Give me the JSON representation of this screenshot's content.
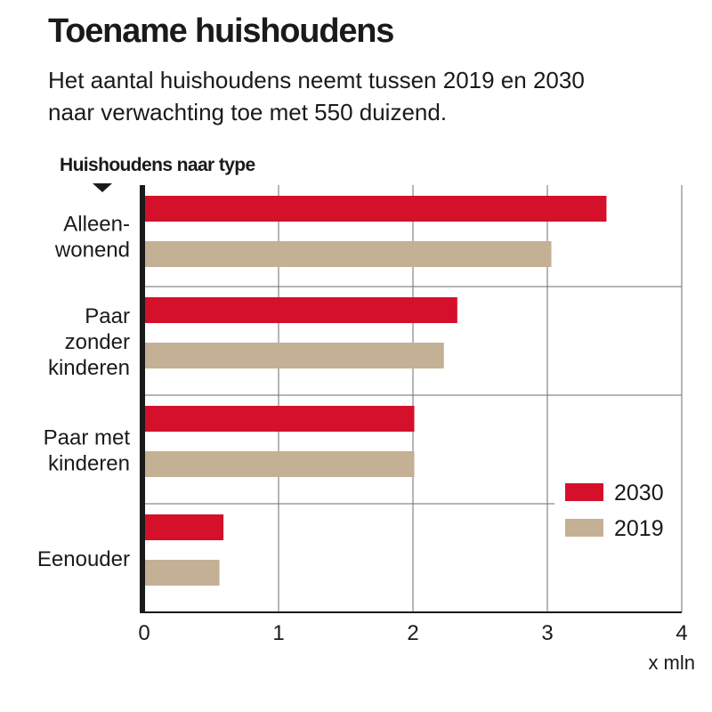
{
  "title": "Toename huishoudens",
  "subtitle": [
    "Het aantal huishoudens neemt tussen 2019 en 2030",
    "naar verwachting toe met 550 duizend."
  ],
  "section_label": "Huishoudens naar type",
  "colors": {
    "series_2030": "#d4102a",
    "series_2019": "#c4b094",
    "axis": "#1a1a1a",
    "grid": "#6e6e6e"
  },
  "chart_data": {
    "type": "bar",
    "orientation": "horizontal",
    "categories": [
      [
        "Alleen-",
        "wonend"
      ],
      [
        "Paar",
        "zonder",
        "kinderen"
      ],
      [
        "Paar met",
        "kinderen"
      ],
      [
        "Eenouder"
      ]
    ],
    "series": [
      {
        "name": "2030",
        "values": [
          3.44,
          2.33,
          2.01,
          0.59
        ]
      },
      {
        "name": "2019",
        "values": [
          3.03,
          2.23,
          2.01,
          0.56
        ]
      }
    ],
    "x_ticks": [
      "0",
      "1",
      "2",
      "3",
      "4"
    ],
    "xlim": [
      0,
      4
    ],
    "xlabel": "x mln",
    "grid": true,
    "legend_position": "bottom-right"
  }
}
